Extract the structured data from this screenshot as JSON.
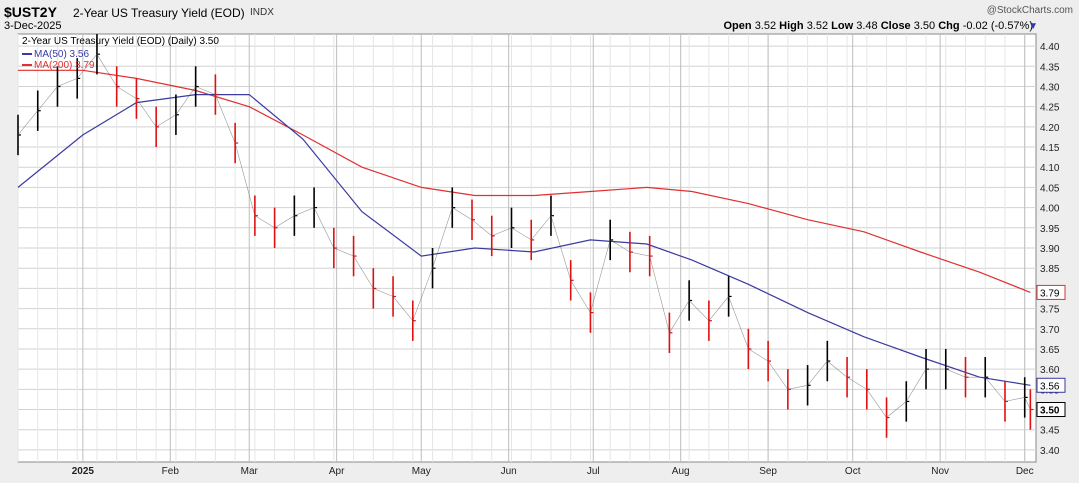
{
  "header": {
    "symbol": "$UST2Y",
    "title": "2-Year US Treasury Yield (EOD)",
    "exchange": "INDX",
    "date": "3-Dec-2025",
    "logo": "@StockCharts.com",
    "open_label": "Open",
    "open": "3.52",
    "high_label": "High",
    "high": "3.52",
    "low_label": "Low",
    "low": "3.48",
    "close_label": "Close",
    "close": "3.50",
    "chg_label": "Chg",
    "chg": "-0.02 (-0.57%)",
    "dropdown_icon": "chevron-down-icon"
  },
  "legend": {
    "main": "2-Year US Treasury Yield (EOD) (Daily) 3.50",
    "ma50": "MA(50) 3.56",
    "ma200": "MA(200) 3.79"
  },
  "colors": {
    "up": "#000000",
    "down": "#e01010",
    "ma50": "#3a3aa0",
    "ma200": "#e03030",
    "grid": "#d2d2d2",
    "plot_bg": "#ffffff"
  },
  "chart_data": {
    "type": "line",
    "title": "2-Year US Treasury Yield (EOD)",
    "x_labels": [
      "2025",
      "Feb",
      "Mar",
      "Apr",
      "May",
      "Jun",
      "Jul",
      "Aug",
      "Sep",
      "Oct",
      "Nov",
      "Dec"
    ],
    "y_ticks": [
      "3.40",
      "3.45",
      "3.50",
      "3.55",
      "3.60",
      "3.65",
      "3.70",
      "3.75",
      "3.80",
      "3.85",
      "3.90",
      "3.95",
      "4.00",
      "4.05",
      "4.10",
      "4.15",
      "4.20",
      "4.25",
      "4.30",
      "4.35",
      "4.40"
    ],
    "ylim": [
      3.37,
      4.43
    ],
    "series": [
      {
        "name": "2-Year US Treasury Yield (EOD)",
        "x": [
          "2024-12-09",
          "2024-12-16",
          "2024-12-23",
          "2024-12-30",
          "2025-01-06",
          "2025-01-13",
          "2025-01-20",
          "2025-01-27",
          "2025-02-03",
          "2025-02-10",
          "2025-02-17",
          "2025-02-24",
          "2025-03-03",
          "2025-03-10",
          "2025-03-17",
          "2025-03-24",
          "2025-03-31",
          "2025-04-07",
          "2025-04-14",
          "2025-04-21",
          "2025-04-28",
          "2025-05-05",
          "2025-05-12",
          "2025-05-19",
          "2025-05-26",
          "2025-06-02",
          "2025-06-09",
          "2025-06-16",
          "2025-06-23",
          "2025-06-30",
          "2025-07-07",
          "2025-07-14",
          "2025-07-21",
          "2025-07-28",
          "2025-08-04",
          "2025-08-11",
          "2025-08-18",
          "2025-08-25",
          "2025-09-01",
          "2025-09-08",
          "2025-09-15",
          "2025-09-22",
          "2025-09-29",
          "2025-10-06",
          "2025-10-13",
          "2025-10-20",
          "2025-10-27",
          "2025-11-03",
          "2025-11-10",
          "2025-11-17",
          "2025-11-24",
          "2025-12-01",
          "2025-12-03"
        ],
        "values": [
          4.18,
          4.24,
          4.3,
          4.32,
          4.38,
          4.3,
          4.27,
          4.2,
          4.23,
          4.3,
          4.28,
          4.16,
          3.98,
          3.95,
          3.98,
          4.0,
          3.9,
          3.88,
          3.8,
          3.78,
          3.72,
          3.85,
          4.0,
          3.97,
          3.93,
          3.95,
          3.92,
          3.98,
          3.82,
          3.74,
          3.92,
          3.89,
          3.88,
          3.69,
          3.77,
          3.72,
          3.78,
          3.65,
          3.62,
          3.55,
          3.56,
          3.62,
          3.58,
          3.55,
          3.48,
          3.52,
          3.6,
          3.6,
          3.58,
          3.58,
          3.52,
          3.53,
          3.5
        ]
      },
      {
        "name": "MA(50)",
        "x": [
          "2024-12-09",
          "2025-01-01",
          "2025-01-20",
          "2025-02-10",
          "2025-03-01",
          "2025-03-20",
          "2025-04-10",
          "2025-05-01",
          "2025-05-20",
          "2025-06-10",
          "2025-06-30",
          "2025-07-20",
          "2025-08-05",
          "2025-08-25",
          "2025-09-15",
          "2025-10-05",
          "2025-10-25",
          "2025-11-15",
          "2025-12-03"
        ],
        "values": [
          4.05,
          4.18,
          4.26,
          4.28,
          4.28,
          4.17,
          3.99,
          3.88,
          3.9,
          3.89,
          3.92,
          3.91,
          3.87,
          3.81,
          3.74,
          3.68,
          3.63,
          3.58,
          3.56
        ]
      },
      {
        "name": "MA(200)",
        "x": [
          "2024-12-09",
          "2025-01-01",
          "2025-01-20",
          "2025-02-10",
          "2025-03-01",
          "2025-03-20",
          "2025-04-10",
          "2025-05-01",
          "2025-05-20",
          "2025-06-10",
          "2025-06-30",
          "2025-07-20",
          "2025-08-05",
          "2025-08-25",
          "2025-09-15",
          "2025-10-05",
          "2025-10-25",
          "2025-11-15",
          "2025-12-03"
        ],
        "values": [
          4.34,
          4.34,
          4.32,
          4.29,
          4.25,
          4.18,
          4.1,
          4.05,
          4.03,
          4.03,
          4.04,
          4.05,
          4.04,
          4.01,
          3.97,
          3.94,
          3.89,
          3.84,
          3.79
        ]
      }
    ],
    "labels_on_axis": [
      "3.79",
      "3.56",
      "3.50"
    ]
  }
}
